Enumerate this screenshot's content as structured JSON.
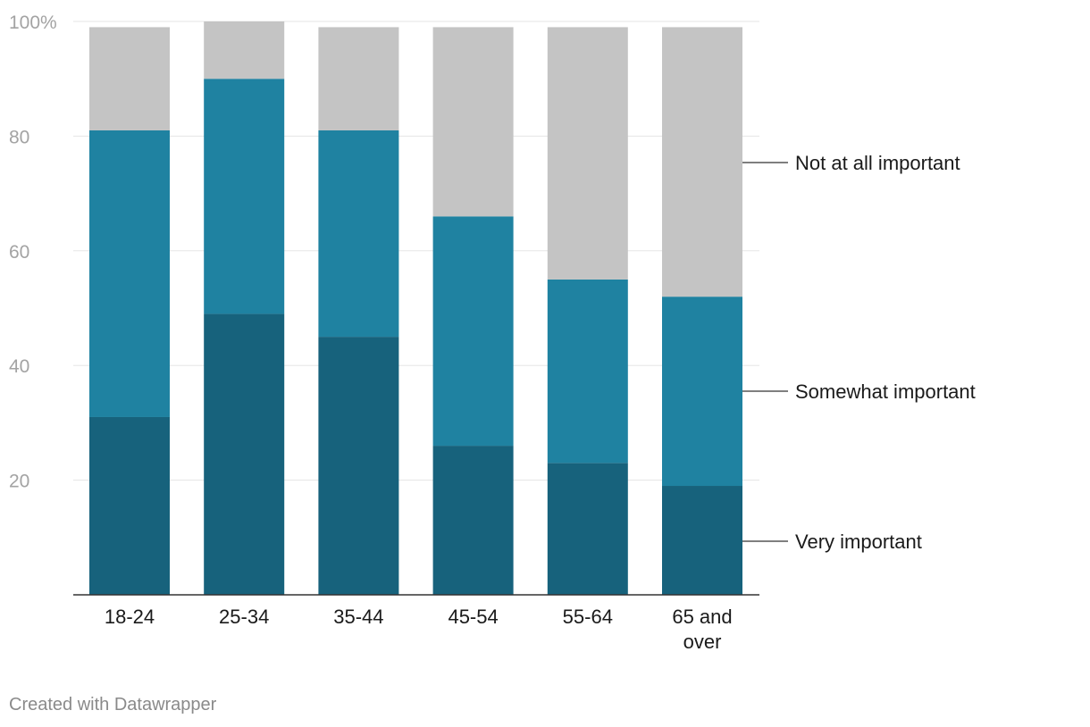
{
  "chart_data": {
    "type": "bar",
    "stacked": true,
    "categories": [
      "18-24",
      "25-34",
      "35-44",
      "45-54",
      "55-64",
      "65 and over"
    ],
    "series": [
      {
        "name": "Very important",
        "values": [
          31,
          49,
          45,
          26,
          23,
          19
        ]
      },
      {
        "name": "Somewhat important",
        "values": [
          50,
          41,
          36,
          40,
          32,
          33
        ]
      },
      {
        "name": "Not at all important",
        "values": [
          18,
          10,
          18,
          33,
          44,
          47
        ]
      }
    ],
    "colors": [
      "#17627c",
      "#1f82a1",
      "#c4c4c4"
    ],
    "ylim": [
      0,
      100
    ],
    "yticks": [
      20,
      40,
      60,
      80,
      100
    ],
    "ytick_labels": [
      "20",
      "40",
      "60",
      "80",
      "100%"
    ],
    "legend_position": "right",
    "title": "",
    "xlabel": "",
    "ylabel": ""
  },
  "footer": {
    "credit": "Created with Datawrapper"
  }
}
